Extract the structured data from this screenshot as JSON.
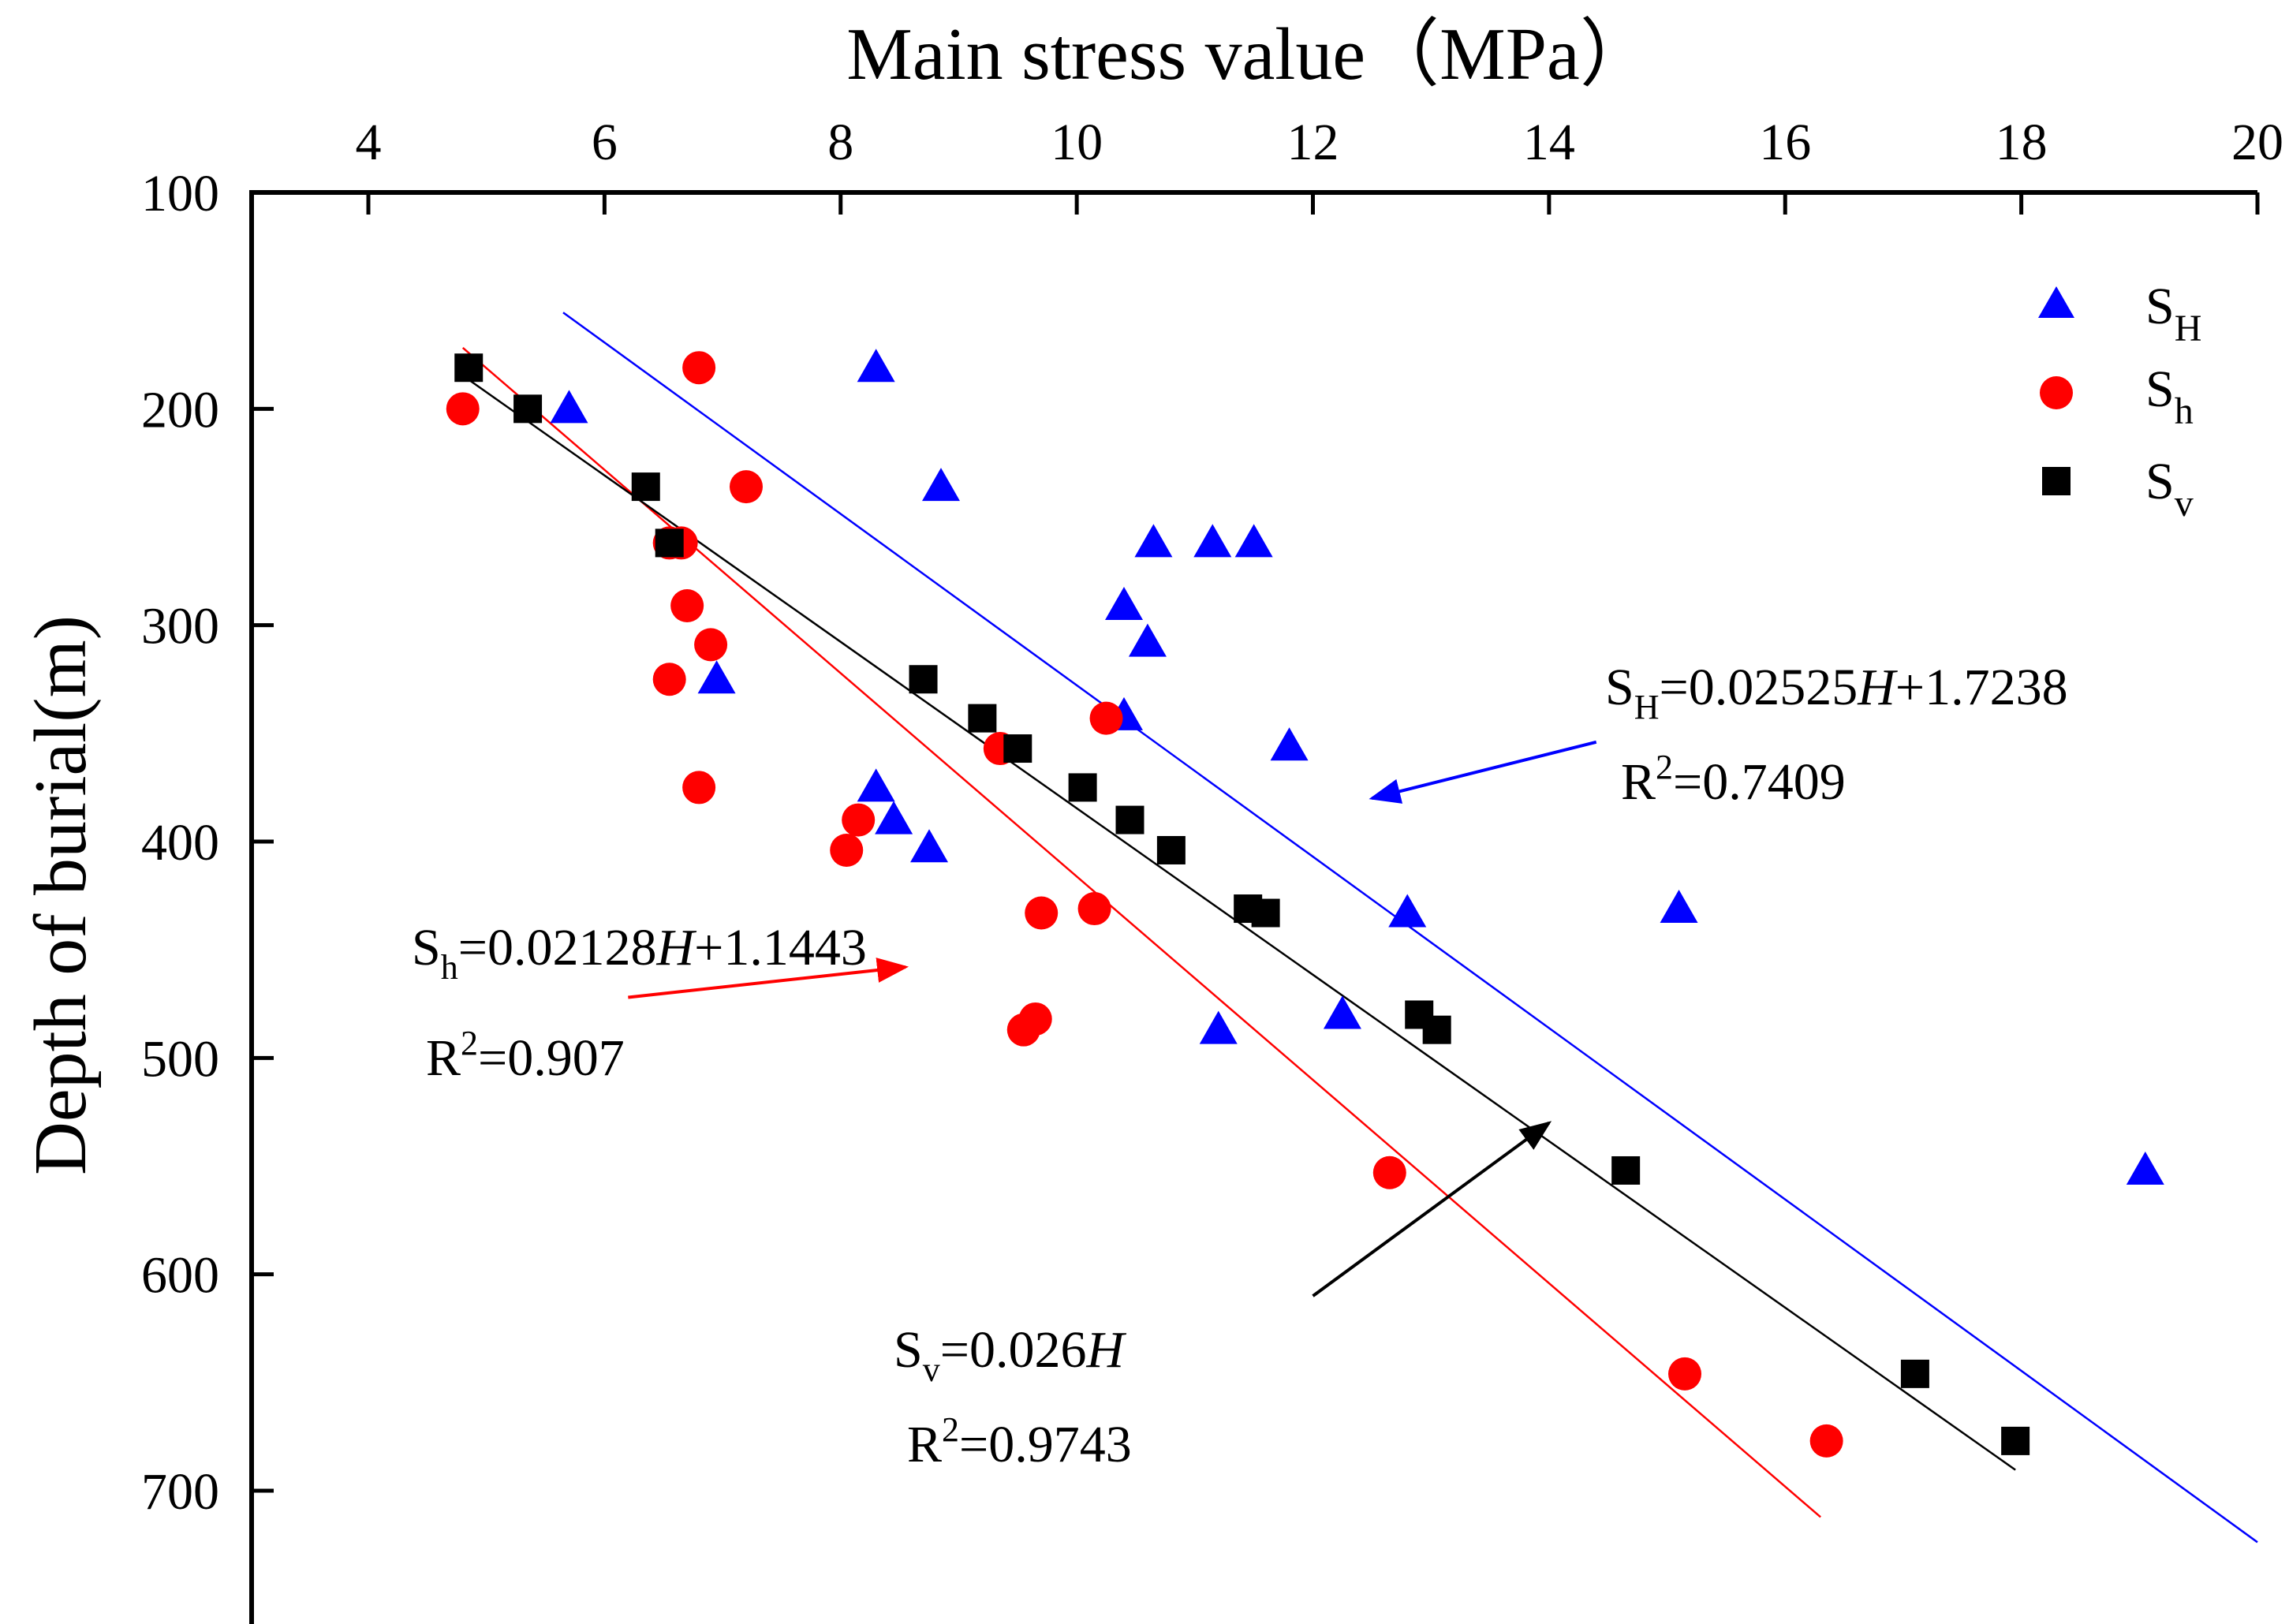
{
  "colors": {
    "SH": "#0000ff",
    "Sh": "#ff0000",
    "Sv": "#000000",
    "axis": "#000000",
    "background": "#ffffff"
  },
  "chart_data": {
    "type": "scatter",
    "title": "Main stress value（MPa）",
    "xlabel": "Main stress value（MPa）",
    "ylabel": "Depth of burial(m)",
    "x_axis_position": "top",
    "y_axis_inverted": true,
    "xlim": [
      3,
      20
    ],
    "ylim": [
      100,
      750
    ],
    "xticks": [
      4,
      6,
      8,
      10,
      12,
      14,
      16,
      18,
      20
    ],
    "yticks": [
      100,
      200,
      300,
      400,
      500,
      600,
      700
    ],
    "grid": false,
    "legend_position": "top-right",
    "series": [
      {
        "id": "SH",
        "name": "S",
        "subscript": "H",
        "marker": "triangle",
        "color": "#0000ff",
        "points": [
          [
            5.7,
            200
          ],
          [
            8.3,
            181
          ],
          [
            8.85,
            236
          ],
          [
            10.65,
            262
          ],
          [
            11.15,
            262
          ],
          [
            11.5,
            262
          ],
          [
            10.4,
            291
          ],
          [
            10.6,
            308
          ],
          [
            6.95,
            325
          ],
          [
            10.4,
            342
          ],
          [
            11.8,
            356
          ],
          [
            8.3,
            375
          ],
          [
            8.45,
            390
          ],
          [
            8.75,
            403
          ],
          [
            12.8,
            433
          ],
          [
            15.1,
            431
          ],
          [
            12.25,
            480
          ],
          [
            11.2,
            487
          ],
          [
            19.05,
            552
          ]
        ],
        "fit": {
          "x_range": [
            5.65,
            20
          ],
          "equation_parts": {
            "lhs": "S",
            "sub": "H",
            "eq": "=0.02525",
            "var": "H",
            "rest": "+1.7238"
          },
          "r2_parts": {
            "lhs": "R",
            "sup": "2",
            "rest": "=0.7409"
          },
          "r2_value": 0.7409,
          "annotation_arrow": {
            "from": [
              14.4,
              354
            ],
            "to": [
              12.5,
              380
            ]
          }
        }
      },
      {
        "id": "Sh",
        "name": "S",
        "subscript": "h",
        "marker": "circle",
        "color": "#ff0000",
        "points": [
          [
            4.8,
            200
          ],
          [
            6.8,
            181
          ],
          [
            7.2,
            236
          ],
          [
            6.55,
            262
          ],
          [
            6.65,
            262
          ],
          [
            6.7,
            291
          ],
          [
            6.9,
            309
          ],
          [
            6.55,
            325
          ],
          [
            10.25,
            343
          ],
          [
            9.35,
            357
          ],
          [
            6.8,
            375
          ],
          [
            8.15,
            390
          ],
          [
            8.05,
            404
          ],
          [
            9.7,
            433
          ],
          [
            10.15,
            431
          ],
          [
            9.65,
            482
          ],
          [
            9.55,
            487
          ],
          [
            12.65,
            553
          ],
          [
            15.15,
            646
          ],
          [
            16.35,
            677
          ]
        ],
        "fit": {
          "x_range": [
            4.8,
            16.3
          ],
          "equation_parts": {
            "lhs": "S",
            "sub": "h",
            "eq": "=0.02128",
            "var": "H",
            "rest": "+1.1443"
          },
          "r2_parts": {
            "lhs": "R",
            "sup": "2",
            "rest": "=0.907"
          },
          "r2_value": 0.907,
          "annotation_arrow": {
            "from": [
              6.2,
              472
            ],
            "to": [
              8.55,
              458
            ]
          }
        }
      },
      {
        "id": "Sv",
        "name": "S",
        "subscript": "v",
        "marker": "square",
        "color": "#000000",
        "points": [
          [
            4.85,
            181
          ],
          [
            5.35,
            200
          ],
          [
            6.35,
            236
          ],
          [
            6.55,
            262
          ],
          [
            8.7,
            325
          ],
          [
            9.2,
            343
          ],
          [
            9.5,
            357
          ],
          [
            10.05,
            375
          ],
          [
            10.45,
            390
          ],
          [
            10.8,
            404
          ],
          [
            11.45,
            431
          ],
          [
            11.6,
            433
          ],
          [
            12.9,
            480
          ],
          [
            13.05,
            487
          ],
          [
            14.65,
            552
          ],
          [
            17.1,
            646
          ],
          [
            17.95,
            677
          ]
        ],
        "fit": {
          "x_range": [
            4.85,
            17.95
          ],
          "equation_parts": {
            "lhs": "S",
            "sub": "v",
            "eq": "=0.026",
            "var": "H",
            "rest": ""
          },
          "r2_parts": {
            "lhs": "R",
            "sup": "2",
            "rest": "=0.9743"
          },
          "r2_value": 0.9743,
          "annotation_arrow": {
            "from": [
              12.0,
              610
            ],
            "to": [
              14.0,
              530
            ]
          }
        }
      }
    ]
  }
}
